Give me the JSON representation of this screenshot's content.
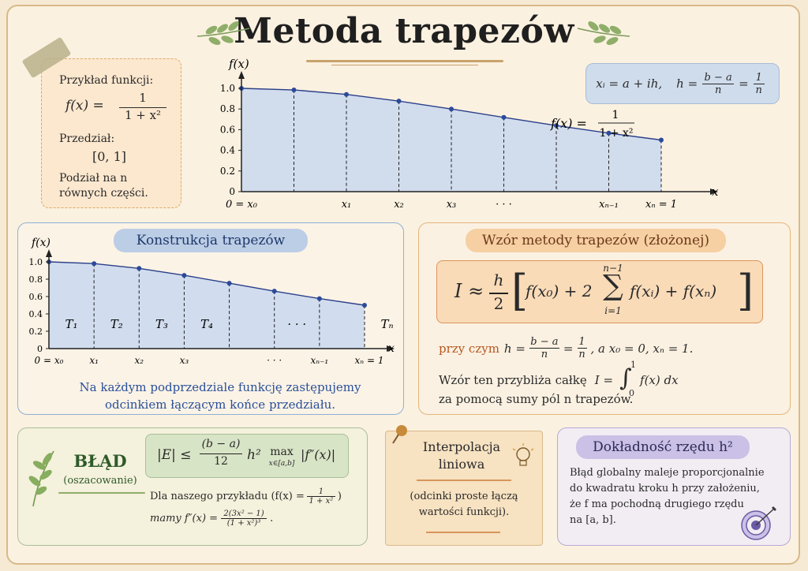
{
  "title": "Metoda trapezów",
  "example": {
    "heading": "Przykład funkcji:",
    "fx_lhs": "f(x) =",
    "fx_num": "1",
    "fx_den": "1 + x²",
    "interval_label": "Przedział:",
    "interval": "[0, 1]",
    "division_text": "Podział na n równych części."
  },
  "grid_formula": {
    "xi": "xᵢ = a + ih,",
    "h_lhs": "h =",
    "h_num": "b − a",
    "h_den": "n",
    "eq": "=",
    "h_num2": "1",
    "h_den2": "n"
  },
  "top_chart": {
    "ylabel": "f(x)",
    "xlabel": "x",
    "curve_label_lhs": "f(x) =",
    "curve_label_num": "1",
    "curve_label_den": "1 + x²",
    "y_ticks": [
      "0",
      "0.2",
      "0.4",
      "0.6",
      "0.8",
      "1.0"
    ],
    "x_labels": [
      "0 = x₀",
      "x₁",
      "x₂",
      "x₃",
      "· · ·",
      "xₙ₋₁",
      "xₙ = 1"
    ]
  },
  "construction": {
    "title": "Konstrukcja trapezów",
    "ylabel": "f(x)",
    "xlabel": "x",
    "y_ticks": [
      "0",
      "0.2",
      "0.4",
      "0.6",
      "0.8",
      "1.0"
    ],
    "x_labels": [
      "0 = x₀",
      "x₁",
      "x₂",
      "x₃",
      "· · ·",
      "xₙ₋₁",
      "xₙ = 1"
    ],
    "trap_labels": [
      "T₁",
      "T₂",
      "T₃",
      "T₄",
      "· · ·",
      "Tₙ"
    ],
    "caption_line1": "Na każdym podprzedziale funkcję zastępujemy",
    "caption_line2": "odcinkiem łączącym końce przedziału."
  },
  "formula": {
    "title": "Wzór metody trapezów (złożonej)",
    "I_approx": "I ≈",
    "h_over_2_num": "h",
    "h_over_2_den": "2",
    "bracket_inner": "f(x₀) + 2",
    "sum_top": "n−1",
    "sum_bottom": "i=1",
    "sum_term": "f(xᵢ) + f(xₙ)",
    "where_label": "przy czym",
    "where_h": "h =",
    "where_num": "b − a",
    "where_den": "n",
    "where_eq": "=",
    "where_num2": "1",
    "where_den2": "n",
    "where_rest": ",  a  x₀ = 0,   xₙ = 1.",
    "approx_text": "Wzór ten przybliża całkę",
    "integral_lhs": "I =",
    "int_top": "1",
    "int_bottom": "0",
    "integrand": "f(x) dx",
    "approx_text2": "za pomocą sumy pól n trapezów."
  },
  "error": {
    "title": "BŁĄD",
    "subtitle": "(oszacowanie)",
    "lhs": "|E| ≤",
    "num": "(b − a)",
    "den": "12",
    "rest": "h²",
    "max": "max",
    "max_sub": "x∈[a,b]",
    "fpp": "|f″(x)|",
    "example_line1_pre": "Dla naszego przykładu (f(x) =",
    "example_line1_num": "1",
    "example_line1_den": "1 + x²",
    "example_line1_post": ")",
    "example_line2_pre": "mamy  f″(x) =",
    "example_line2_num": "2(3x² − 1)",
    "example_line2_den": "(1 + x²)³",
    "example_line2_post": "."
  },
  "interp": {
    "title_line1": "Interpolacja",
    "title_line2": "liniowa",
    "text_line1": "(odcinki proste łączą",
    "text_line2": "wartości funkcji)."
  },
  "accuracy": {
    "title": "Dokładność rzędu h²",
    "line1": "Błąd globalny maleje proporcjonalnie",
    "line2": "do kwadratu kroku h przy założeniu,",
    "line3": "że f ma pochodną drugiego rzędu",
    "line4": "na [a, b]."
  },
  "colors": {
    "fill_blue": "#c9d8ee",
    "curve": "#2b3f8a",
    "point": "#2b4a9a",
    "accent_orange": "#b5571f",
    "caption_blue": "#2a4f9a"
  }
}
